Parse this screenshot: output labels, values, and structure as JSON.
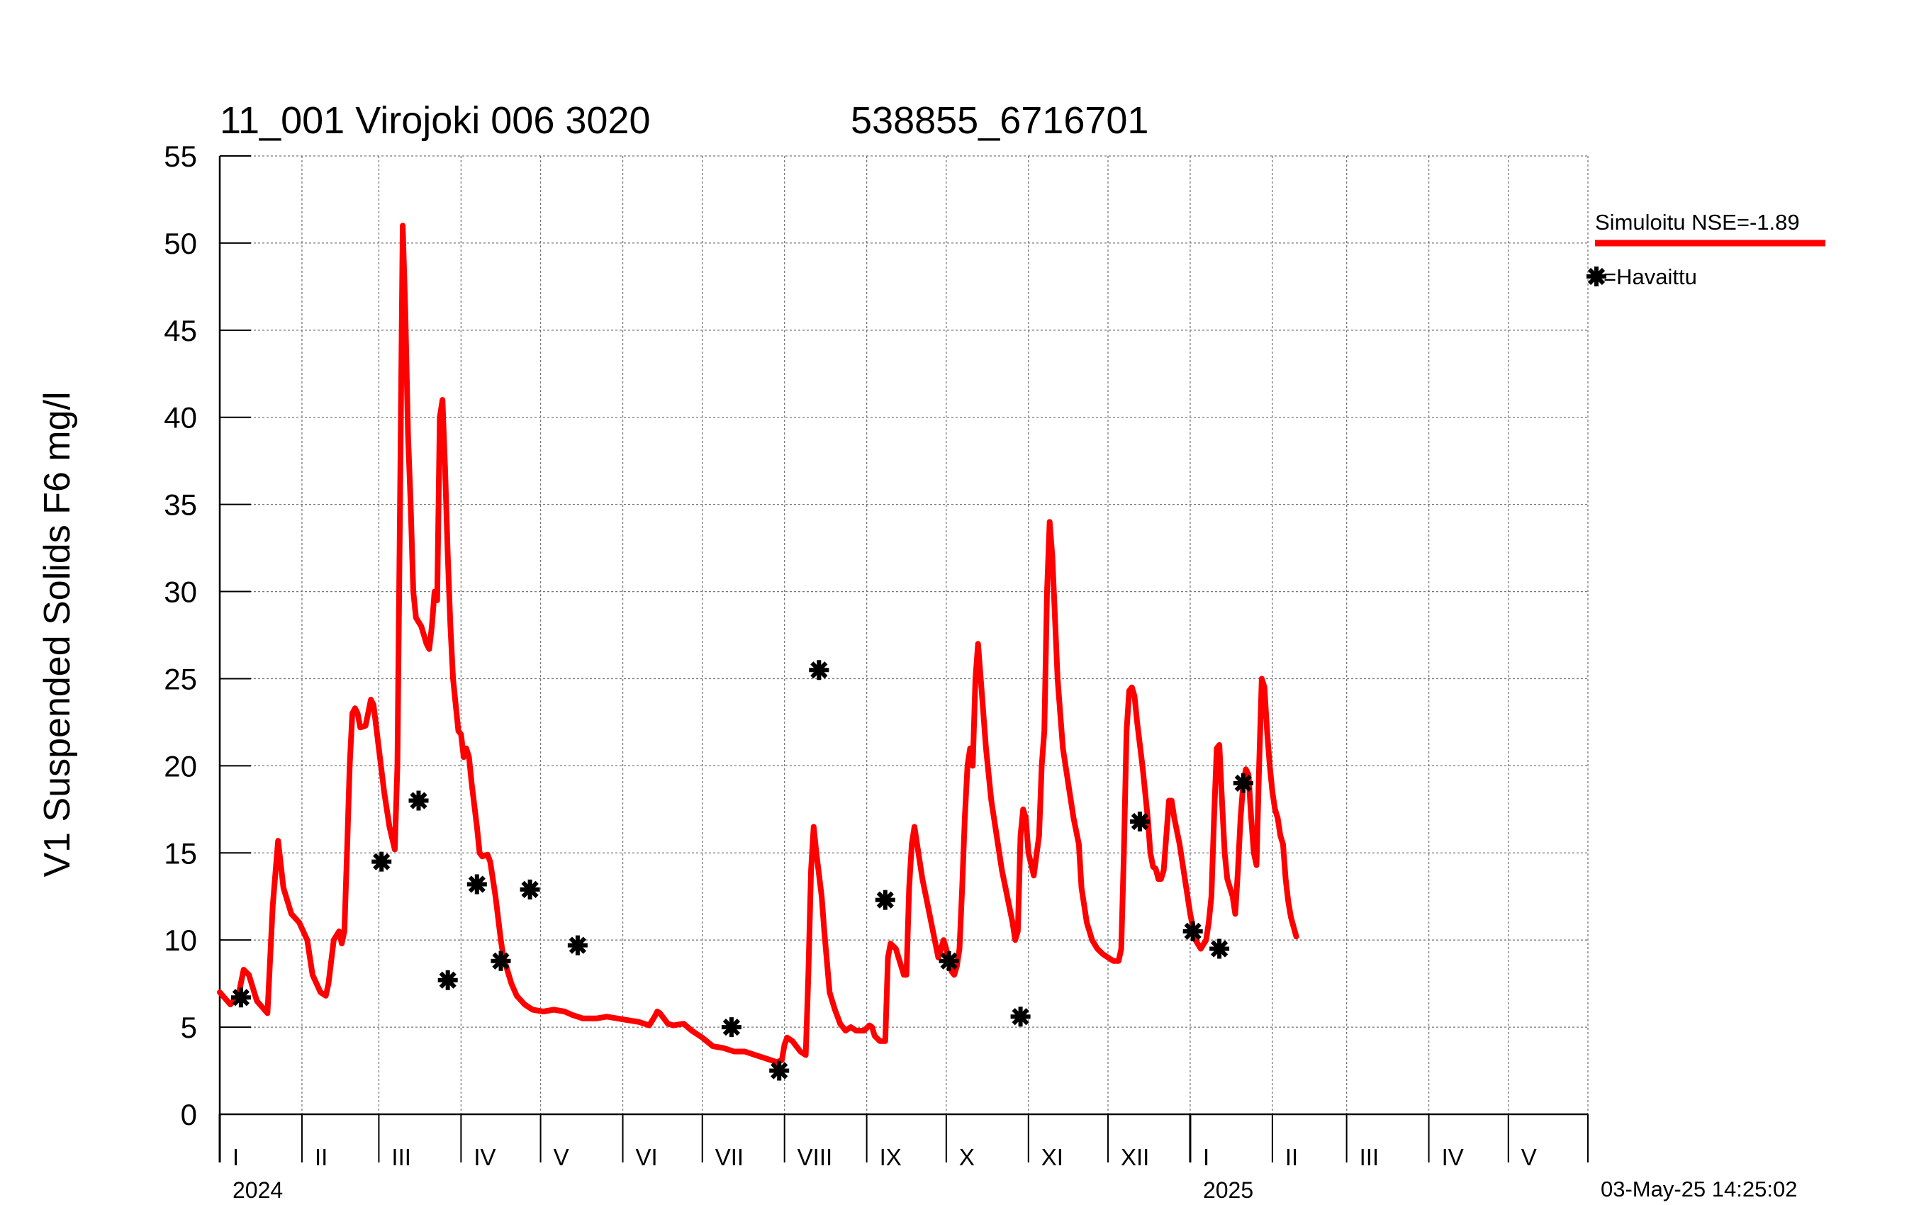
{
  "title": {
    "station": "11_001 Virojoki 006 3020",
    "coordinates": "538855_6716701"
  },
  "timestamp": "03-May-25 14:25:02",
  "colors": {
    "simulated": "#ff0000",
    "observed": "#000000",
    "grid": "#777777"
  },
  "chart_data": {
    "type": "line",
    "ylabel": "V1 Suspended Solids F6 mg/l",
    "ylim": [
      0,
      55
    ],
    "yticks": [
      0,
      5,
      10,
      15,
      20,
      25,
      30,
      35,
      40,
      45,
      50,
      55
    ],
    "x_unit": "days since 2024-01-01",
    "xlim": [
      0,
      516
    ],
    "months": [
      {
        "label": "I",
        "start": 0
      },
      {
        "label": "II",
        "start": 31
      },
      {
        "label": "III",
        "start": 60
      },
      {
        "label": "IV",
        "start": 91
      },
      {
        "label": "V",
        "start": 121
      },
      {
        "label": "VI",
        "start": 152
      },
      {
        "label": "VII",
        "start": 182
      },
      {
        "label": "VIII",
        "start": 213
      },
      {
        "label": "IX",
        "start": 244
      },
      {
        "label": "X",
        "start": 274
      },
      {
        "label": "XI",
        "start": 305
      },
      {
        "label": "XII",
        "start": 335
      },
      {
        "label": "I",
        "start": 366
      },
      {
        "label": "II",
        "start": 397
      },
      {
        "label": "III",
        "start": 425
      },
      {
        "label": "IV",
        "start": 456
      },
      {
        "label": "V",
        "start": 486
      }
    ],
    "month_ends": [
      516
    ],
    "years": [
      {
        "label": "2024",
        "day": 0
      },
      {
        "label": "2025",
        "day": 366
      }
    ],
    "legend": {
      "simulated": "Simuloitu NSE=-1.89",
      "observed": "=Havaittu"
    },
    "series": [
      {
        "name": "Simuloitu",
        "kind": "line",
        "points": [
          [
            0,
            7
          ],
          [
            4,
            6.3
          ],
          [
            7,
            6.8
          ],
          [
            9,
            8.3
          ],
          [
            11,
            8
          ],
          [
            14,
            6.5
          ],
          [
            18,
            5.8
          ],
          [
            20,
            12
          ],
          [
            22,
            15.7
          ],
          [
            24,
            13
          ],
          [
            27,
            11.5
          ],
          [
            30,
            11
          ],
          [
            33,
            10
          ],
          [
            35,
            8
          ],
          [
            38,
            7
          ],
          [
            40,
            6.8
          ],
          [
            41,
            7.5
          ],
          [
            43,
            10
          ],
          [
            45,
            10.5
          ],
          [
            46,
            9.8
          ],
          [
            47,
            10.5
          ],
          [
            48,
            15
          ],
          [
            49,
            20
          ],
          [
            50,
            23
          ],
          [
            51,
            23.3
          ],
          [
            52,
            23
          ],
          [
            53,
            22.2
          ],
          [
            55,
            22.3
          ],
          [
            57,
            23.8
          ],
          [
            58,
            23.5
          ],
          [
            60,
            21
          ],
          [
            62,
            18.5
          ],
          [
            64,
            16.5
          ],
          [
            66,
            15.2
          ],
          [
            67,
            20
          ],
          [
            68,
            35
          ],
          [
            69,
            51
          ],
          [
            70,
            46
          ],
          [
            71,
            39
          ],
          [
            72,
            35
          ],
          [
            73,
            30
          ],
          [
            74,
            28.5
          ],
          [
            76,
            28
          ],
          [
            78,
            27
          ],
          [
            79,
            26.7
          ],
          [
            80,
            28
          ],
          [
            81,
            30
          ],
          [
            82,
            29.5
          ],
          [
            83,
            40
          ],
          [
            84,
            41
          ],
          [
            85,
            37
          ],
          [
            86,
            32
          ],
          [
            87,
            28
          ],
          [
            88,
            25
          ],
          [
            90,
            22
          ],
          [
            91,
            21.8
          ],
          [
            92,
            20.5
          ],
          [
            93,
            21
          ],
          [
            94,
            20.5
          ],
          [
            95,
            19
          ],
          [
            97,
            16.5
          ],
          [
            98,
            15
          ],
          [
            99,
            14.8
          ],
          [
            101,
            14.9
          ],
          [
            102,
            14.5
          ],
          [
            104,
            12.5
          ],
          [
            106,
            10
          ],
          [
            107,
            9
          ],
          [
            108,
            8.5
          ],
          [
            110,
            7.5
          ],
          [
            112,
            6.8
          ],
          [
            115,
            6.3
          ],
          [
            118,
            6
          ],
          [
            122,
            5.9
          ],
          [
            126,
            6
          ],
          [
            130,
            5.9
          ],
          [
            133,
            5.7
          ],
          [
            137,
            5.5
          ],
          [
            142,
            5.5
          ],
          [
            146,
            5.6
          ],
          [
            150,
            5.5
          ],
          [
            154,
            5.4
          ],
          [
            158,
            5.3
          ],
          [
            162,
            5.1
          ],
          [
            164,
            5.6
          ],
          [
            165,
            5.9
          ],
          [
            166,
            5.8
          ],
          [
            167,
            5.6
          ],
          [
            169,
            5.2
          ],
          [
            171,
            5.1
          ],
          [
            175,
            5.2
          ],
          [
            178,
            4.8
          ],
          [
            182,
            4.4
          ],
          [
            186,
            3.9
          ],
          [
            190,
            3.8
          ],
          [
            194,
            3.6
          ],
          [
            198,
            3.6
          ],
          [
            202,
            3.4
          ],
          [
            206,
            3.2
          ],
          [
            210,
            3.0
          ],
          [
            212,
            3.1
          ],
          [
            213,
            4
          ],
          [
            214,
            4.4
          ],
          [
            216,
            4.2
          ],
          [
            219,
            3.6
          ],
          [
            221,
            3.4
          ],
          [
            222,
            8
          ],
          [
            223,
            14
          ],
          [
            224,
            16.5
          ],
          [
            225,
            15
          ],
          [
            227,
            12.5
          ],
          [
            228,
            10.5
          ],
          [
            230,
            7
          ],
          [
            232,
            6
          ],
          [
            234,
            5.2
          ],
          [
            236,
            4.8
          ],
          [
            238,
            5
          ],
          [
            240,
            4.8
          ],
          [
            243,
            4.8
          ],
          [
            245,
            5.1
          ],
          [
            246,
            5
          ],
          [
            247,
            4.5
          ],
          [
            249,
            4.2
          ],
          [
            251,
            4.2
          ],
          [
            252,
            9
          ],
          [
            253,
            9.8
          ],
          [
            255,
            9.5
          ],
          [
            256,
            9
          ],
          [
            257,
            8.5
          ],
          [
            258,
            8
          ],
          [
            259,
            8
          ],
          [
            260,
            13
          ],
          [
            261,
            15.5
          ],
          [
            262,
            16.5
          ],
          [
            263,
            15.5
          ],
          [
            265,
            13.5
          ],
          [
            267,
            12
          ],
          [
            269,
            10.5
          ],
          [
            271,
            9
          ],
          [
            272,
            9.5
          ],
          [
            273,
            10
          ],
          [
            274,
            9.5
          ],
          [
            276,
            8.2
          ],
          [
            277,
            8
          ],
          [
            278,
            8.5
          ],
          [
            279,
            9.5
          ],
          [
            280,
            13
          ],
          [
            281,
            17
          ],
          [
            282,
            20
          ],
          [
            283,
            21
          ],
          [
            284,
            20
          ],
          [
            285,
            25
          ],
          [
            286,
            27
          ],
          [
            287,
            25
          ],
          [
            289,
            21
          ],
          [
            291,
            18
          ],
          [
            293,
            16
          ],
          [
            295,
            14
          ],
          [
            297,
            12.5
          ],
          [
            299,
            11
          ],
          [
            300,
            10
          ],
          [
            301,
            10.5
          ],
          [
            302,
            16
          ],
          [
            303,
            17.5
          ],
          [
            304,
            17
          ],
          [
            305,
            15
          ],
          [
            307,
            13.7
          ],
          [
            309,
            16
          ],
          [
            310,
            20
          ],
          [
            311,
            22
          ],
          [
            312,
            30
          ],
          [
            313,
            34
          ],
          [
            314,
            32
          ],
          [
            316,
            25
          ],
          [
            318,
            21
          ],
          [
            320,
            19
          ],
          [
            322,
            17
          ],
          [
            324,
            15.5
          ],
          [
            325,
            13
          ],
          [
            327,
            11
          ],
          [
            329,
            10
          ],
          [
            331,
            9.5
          ],
          [
            333,
            9.2
          ],
          [
            335,
            9
          ],
          [
            337,
            8.8
          ],
          [
            339,
            8.8
          ],
          [
            340,
            9.5
          ],
          [
            341,
            15
          ],
          [
            342,
            22
          ],
          [
            343,
            24.3
          ],
          [
            344,
            24.5
          ],
          [
            345,
            24
          ],
          [
            346,
            22.5
          ],
          [
            348,
            20
          ],
          [
            350,
            17
          ],
          [
            351,
            15
          ],
          [
            352,
            14.2
          ],
          [
            353,
            14.1
          ],
          [
            354,
            13.5
          ],
          [
            355,
            13.5
          ],
          [
            356,
            14
          ],
          [
            357,
            16
          ],
          [
            358,
            18
          ],
          [
            359,
            18
          ],
          [
            360,
            17
          ],
          [
            362,
            15.5
          ],
          [
            364,
            13.5
          ],
          [
            366,
            11.5
          ],
          [
            368,
            10
          ],
          [
            370,
            9.5
          ],
          [
            372,
            10
          ],
          [
            373,
            11
          ],
          [
            374,
            12.5
          ],
          [
            375,
            17
          ],
          [
            376,
            21
          ],
          [
            377,
            21.2
          ],
          [
            378,
            18
          ],
          [
            379,
            15
          ],
          [
            380,
            13.5
          ],
          [
            382,
            12.5
          ],
          [
            383,
            11.5
          ],
          [
            384,
            14
          ],
          [
            385,
            17
          ],
          [
            386,
            19
          ],
          [
            387,
            19.8
          ],
          [
            388,
            19.5
          ],
          [
            389,
            17
          ],
          [
            390,
            15
          ],
          [
            391,
            14.3
          ],
          [
            392,
            20
          ],
          [
            393,
            25
          ],
          [
            394,
            24.5
          ],
          [
            395,
            22
          ],
          [
            396,
            20
          ],
          [
            397,
            18.5
          ],
          [
            398,
            17.5
          ],
          [
            399,
            17
          ],
          [
            400,
            16
          ],
          [
            401,
            15.5
          ],
          [
            402,
            13.5
          ],
          [
            403,
            12.2
          ],
          [
            404,
            11.3
          ],
          [
            406,
            10.2
          ]
        ]
      },
      {
        "name": "Havaittu",
        "kind": "scatter",
        "points": [
          [
            8,
            6.7
          ],
          [
            61,
            14.5
          ],
          [
            75,
            18
          ],
          [
            86,
            7.7
          ],
          [
            97,
            13.2
          ],
          [
            106,
            8.8
          ],
          [
            117,
            12.9
          ],
          [
            135,
            9.7
          ],
          [
            193,
            5
          ],
          [
            211,
            2.5
          ],
          [
            226,
            25.5
          ],
          [
            251,
            12.3
          ],
          [
            275,
            8.8
          ],
          [
            302,
            5.6
          ],
          [
            347,
            16.8
          ],
          [
            367,
            10.5
          ],
          [
            377,
            9.5
          ],
          [
            386,
            19
          ]
        ]
      }
    ]
  }
}
